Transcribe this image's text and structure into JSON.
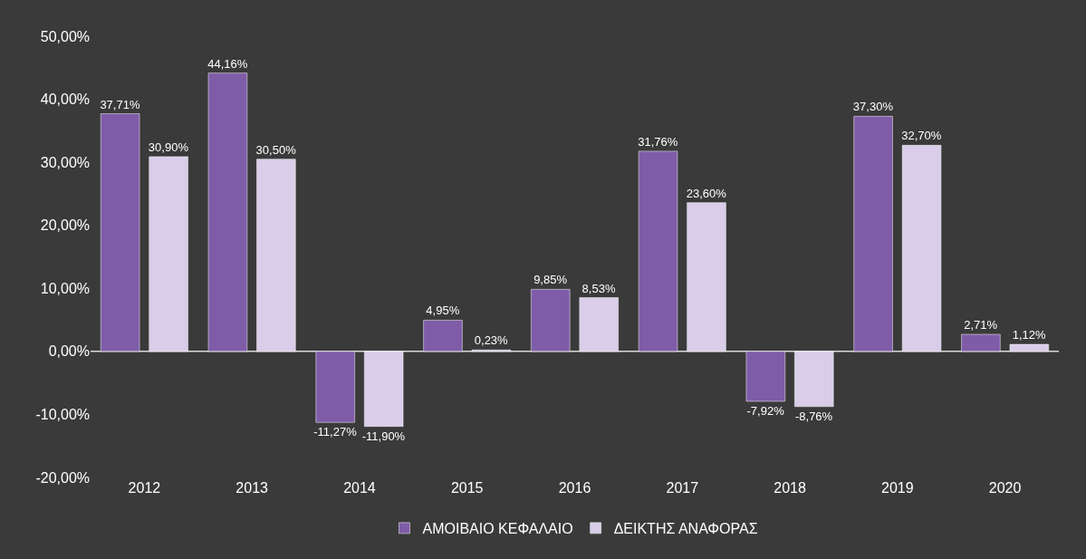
{
  "chart_data": {
    "type": "bar",
    "categories": [
      "2012",
      "2013",
      "2014",
      "2015",
      "2016",
      "2017",
      "2018",
      "2019",
      "2020"
    ],
    "series": [
      {
        "name": "ΑΜΟΙΒΑΙΟ ΚΕΦΑΛΑΙΟ",
        "color": "#7f5ca8",
        "values": [
          37.71,
          44.16,
          -11.27,
          4.95,
          9.85,
          31.76,
          -7.92,
          37.3,
          2.71
        ],
        "value_labels": [
          "37,71%",
          "44,16%",
          "-11,27%",
          "4,95%",
          "9,85%",
          "31,76%",
          "-7,92%",
          "37,30%",
          "2,71%"
        ]
      },
      {
        "name": "ΔΕΙΚΤΗΣ ΑΝΑΦΟΡΑΣ",
        "color": "#d9cde9",
        "values": [
          30.9,
          30.5,
          -11.9,
          0.23,
          8.53,
          23.6,
          -8.76,
          32.7,
          1.12
        ],
        "value_labels": [
          "30,90%",
          "30,50%",
          "-11,90%",
          "0,23%",
          "8,53%",
          "23,60%",
          "-8,76%",
          "32,70%",
          "1,12%"
        ]
      }
    ],
    "ylim": [
      -20,
      50
    ],
    "yticks": [
      {
        "value": -20,
        "label": "-20,00%"
      },
      {
        "value": -10,
        "label": "-10,00%"
      },
      {
        "value": 0,
        "label": "0,00%"
      },
      {
        "value": 10,
        "label": "10,00%"
      },
      {
        "value": 20,
        "label": "20,00%"
      },
      {
        "value": 30,
        "label": "30,00%"
      },
      {
        "value": 40,
        "label": "40,00%"
      },
      {
        "value": 50,
        "label": "50,00%"
      }
    ],
    "grid": false,
    "ref_lines": [
      {
        "axis": "y",
        "value": 0,
        "color": "#d9d9d9"
      }
    ],
    "legend": "bottom"
  }
}
